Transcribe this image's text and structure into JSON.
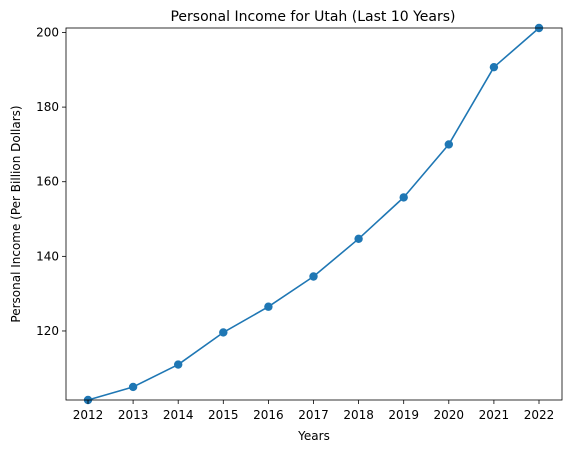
{
  "chart_data": {
    "type": "line",
    "title": "Personal Income for Utah (Last 10 Years)",
    "xlabel": "Years",
    "ylabel": "Personal Income (Per Billion Dollars)",
    "x": [
      "2012",
      "2013",
      "2014",
      "2015",
      "2016",
      "2017",
      "2018",
      "2019",
      "2020",
      "2021",
      "2022"
    ],
    "series": [
      {
        "values": [
          101.5,
          105.0,
          111.0,
          119.6,
          126.5,
          134.6,
          144.7,
          155.8,
          170.0,
          190.7,
          201.2
        ],
        "color": "#1f77b4",
        "marker": "circle"
      }
    ],
    "ylim": [
      101.5,
      201.2
    ],
    "yticks": [
      120,
      140,
      160,
      180,
      200
    ],
    "grid": false,
    "legend": "none"
  }
}
